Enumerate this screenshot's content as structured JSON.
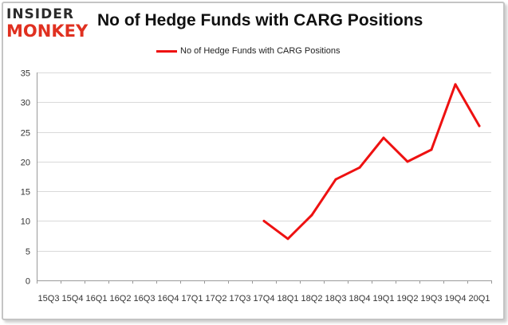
{
  "logo": {
    "line1": "INSIDER",
    "line2": "MONKEY"
  },
  "colors": {
    "series": "#ee1111",
    "grid": "#d9d9d9",
    "axis": "#9a9a9a",
    "logo_accent": "#e03020"
  },
  "chart_data": {
    "type": "line",
    "title": "No of Hedge Funds with CARG Positions",
    "xlabel": "",
    "ylabel": "",
    "ylim": [
      0,
      35
    ],
    "yticks": [
      0,
      5,
      10,
      15,
      20,
      25,
      30,
      35
    ],
    "grid": true,
    "legend_position": "top",
    "x": [
      "2015Q3",
      "2015Q4",
      "2016Q1",
      "2016Q2",
      "2016Q3",
      "2016Q4",
      "2017Q1",
      "2017Q2",
      "2017Q3",
      "2017Q4",
      "2018Q1",
      "2018Q2",
      "2018Q3",
      "2018Q4",
      "2019Q1",
      "2019Q2",
      "2019Q3",
      "2019Q4",
      "2020Q1"
    ],
    "xtick_labels": [
      "15Q3",
      "15Q4",
      "16Q1",
      "16Q2",
      "16Q3",
      "16Q4",
      "17Q1",
      "17Q2",
      "17Q3",
      "17Q4",
      "18Q1",
      "18Q2",
      "18Q3",
      "18Q4",
      "19Q1",
      "19Q2",
      "19Q3",
      "19Q4",
      "20Q1"
    ],
    "series": [
      {
        "name": "No of Hedge Funds with CARG Positions",
        "values": [
          null,
          null,
          null,
          null,
          null,
          null,
          null,
          null,
          null,
          10,
          7,
          11,
          17,
          19,
          24,
          20,
          22,
          33,
          26
        ]
      }
    ]
  }
}
